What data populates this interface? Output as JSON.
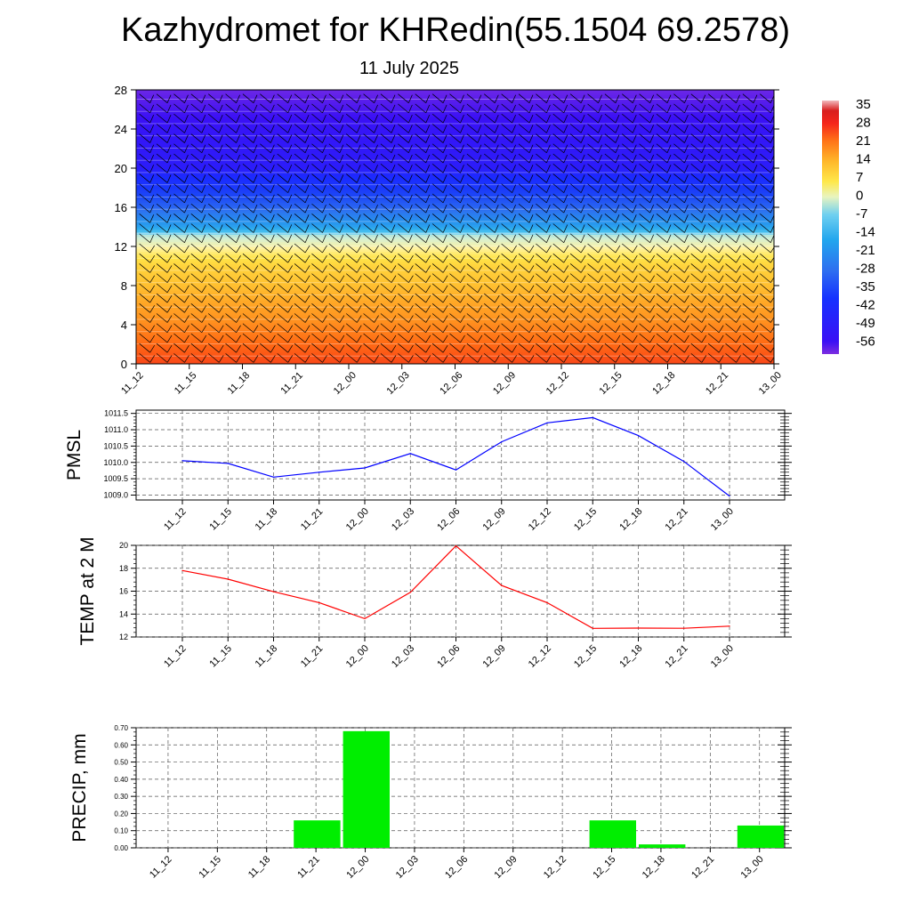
{
  "title": "Kazhydromet for KHRedin(55.1504 69.2578)",
  "subtitle": "11 July 2025",
  "time_labels": [
    "11_12",
    "11_15",
    "11_18",
    "11_21",
    "12_00",
    "12_03",
    "12_06",
    "12_09",
    "12_12",
    "12_15",
    "12_18",
    "12_21",
    "13_00"
  ],
  "chart_data": [
    {
      "type": "heatmap",
      "name": "temperature-cross-section",
      "x": [
        "11_12",
        "11_15",
        "11_18",
        "11_21",
        "12_00",
        "12_03",
        "12_06",
        "12_09",
        "12_12",
        "12_15",
        "12_18",
        "12_21",
        "13_00"
      ],
      "ylim": [
        0,
        28
      ],
      "yticks": [
        0,
        4,
        8,
        12,
        16,
        20,
        24,
        28
      ],
      "colorbar": {
        "labels": [
          "35",
          "28",
          "21",
          "14",
          "7",
          "0",
          "-7",
          "-14",
          "-21",
          "-28",
          "-35",
          "-42",
          "-49",
          "-56"
        ],
        "range": [
          -60,
          38
        ]
      },
      "levels": [
        0,
        2,
        4,
        6,
        8,
        10,
        11,
        12,
        13,
        14,
        16,
        18,
        20,
        22,
        24,
        26,
        28
      ],
      "profile": [
        18,
        14,
        9,
        5,
        0,
        -4,
        -8,
        -12,
        -15,
        -25,
        -37,
        -46,
        -53,
        -54,
        -55,
        -57,
        -59
      ],
      "wind_barbs": "present"
    },
    {
      "type": "line",
      "ylabel": "PMSL",
      "x": [
        "11_12",
        "11_15",
        "11_18",
        "11_21",
        "12_00",
        "12_03",
        "12_06",
        "12_09",
        "12_12",
        "12_15",
        "12_18",
        "12_21",
        "13_00"
      ],
      "series": [
        {
          "values": [
            1010.05,
            1009.97,
            1009.55,
            1009.7,
            1009.83,
            1010.27,
            1009.77,
            1010.63,
            1011.21,
            1011.37,
            1010.82,
            1010.03,
            1008.97
          ],
          "color": "#0000ff"
        }
      ],
      "ylim": [
        1008.85,
        1011.6
      ],
      "yticks": [
        "1009.0",
        "1009.5",
        "1010.0",
        "1010.5",
        "1011.0",
        "1011.5"
      ],
      "grid": true
    },
    {
      "type": "line",
      "ylabel": "TEMP at 2 M",
      "x": [
        "11_12",
        "11_15",
        "11_18",
        "11_21",
        "12_00",
        "12_03",
        "12_06",
        "12_09",
        "12_12",
        "12_15",
        "12_18",
        "12_21",
        "13_00"
      ],
      "series": [
        {
          "values": [
            17.8,
            17.05,
            15.95,
            15.0,
            13.6,
            15.9,
            19.95,
            16.5,
            15.0,
            12.75,
            12.78,
            12.76,
            12.95
          ],
          "color": "#ff0000"
        }
      ],
      "ylim": [
        12,
        20
      ],
      "yticks": [
        "12",
        "14",
        "16",
        "18",
        "20"
      ],
      "grid": true
    },
    {
      "type": "bar",
      "ylabel": "PRECIP, mm",
      "categories": [
        "11_12",
        "11_15",
        "11_18",
        "11_21",
        "12_00",
        "12_03",
        "12_06",
        "12_09",
        "12_12",
        "12_15",
        "12_18",
        "12_21",
        "13_00"
      ],
      "values": [
        0,
        0,
        0,
        0.16,
        0.68,
        0,
        0,
        0,
        0,
        0.16,
        0.02,
        0,
        0.13
      ],
      "color": "#00ee00",
      "ylim": [
        0,
        0.7
      ],
      "yticks": [
        "0.00",
        "0.10",
        "0.20",
        "0.30",
        "0.40",
        "0.50",
        "0.60",
        "0.70"
      ],
      "grid": true
    }
  ]
}
